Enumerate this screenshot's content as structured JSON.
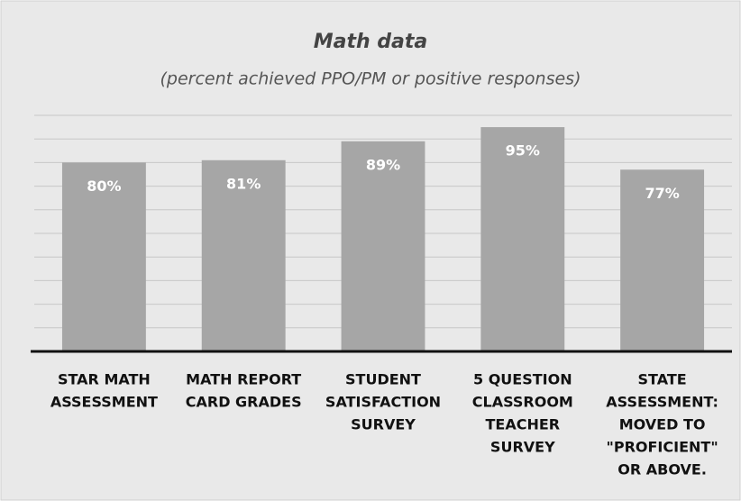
{
  "chart_data": {
    "type": "bar",
    "title": "Math data",
    "subtitle": "(percent achieved PPO/PM or positive responses)",
    "categories": [
      [
        "STAR MATH",
        "ASSESSMENT"
      ],
      [
        "MATH REPORT",
        "CARD GRADES"
      ],
      [
        "STUDENT",
        "SATISFACTION",
        "SURVEY"
      ],
      [
        "5 QUESTION",
        "CLASSROOM",
        "TEACHER",
        "SURVEY"
      ],
      [
        "STATE",
        "ASSESSMENT:",
        "MOVED TO",
        "\"PROFICIENT\"",
        "OR ABOVE."
      ]
    ],
    "values": [
      80,
      81,
      89,
      95,
      77
    ],
    "value_labels": [
      "80%",
      "81%",
      "89%",
      "95%",
      "77%"
    ],
    "color": "#a6a6a6",
    "ylim": [
      0,
      100
    ],
    "yticks": [
      0,
      10,
      20,
      30,
      40,
      50,
      60,
      70,
      80,
      90,
      100
    ],
    "grid": true
  }
}
